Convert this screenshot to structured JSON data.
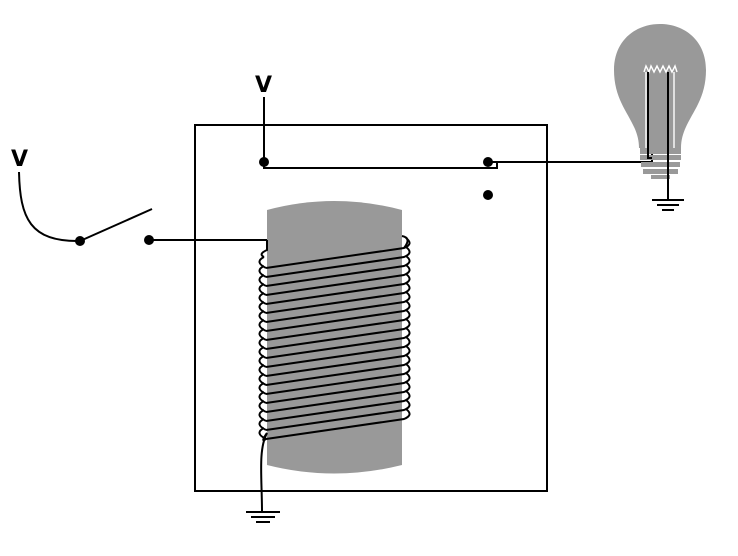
{
  "labels": {
    "relay_supply": "V",
    "switch_supply": "V"
  },
  "colors": {
    "core": "#999999",
    "bulb": "#999999",
    "wire": "#000000"
  },
  "components": {
    "relay_box": "relay-housing",
    "core": "iron-core",
    "coil": "solenoid-coil",
    "switch": "push-switch",
    "lamp": "lightbulb-icon",
    "ground": "ground-icon"
  },
  "coil_turns": 20
}
